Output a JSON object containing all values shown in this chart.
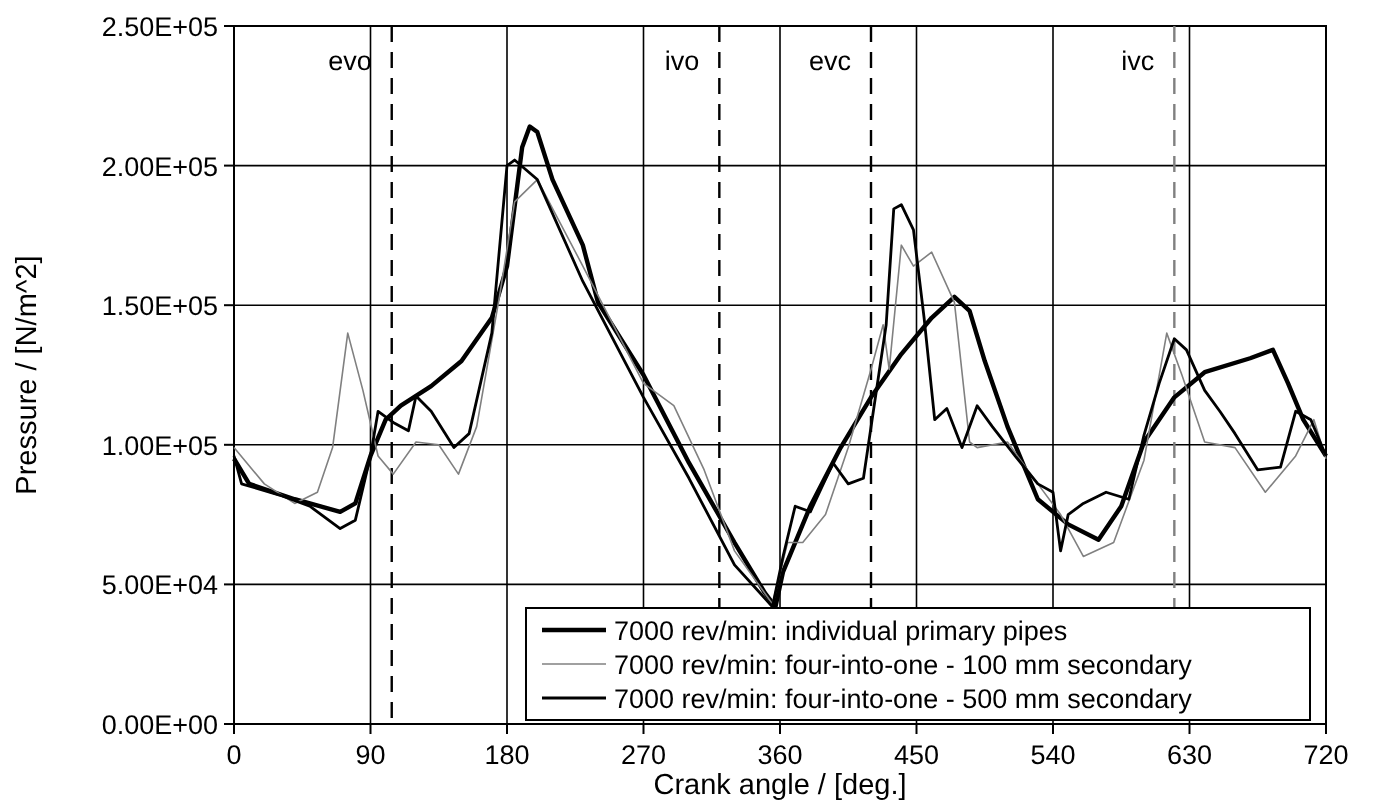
{
  "chart_data": {
    "type": "line",
    "xlabel": "Crank angle / [deg.]",
    "ylabel": "Pressure / [N/m^2]",
    "xlim": [
      0,
      720
    ],
    "xticks": [
      0,
      90,
      180,
      270,
      360,
      450,
      540,
      630,
      720
    ],
    "ylim": [
      0,
      250000
    ],
    "yticks": [
      {
        "value": 0,
        "label": "0.00E+00"
      },
      {
        "value": 50000,
        "label": "5.00E+04"
      },
      {
        "value": 100000,
        "label": "1.00E+05"
      },
      {
        "value": 150000,
        "label": "1.50E+05"
      },
      {
        "value": 200000,
        "label": "2.00E+05"
      },
      {
        "value": 250000,
        "label": "2.50E+05"
      }
    ],
    "grid": true,
    "legend": "bottom right",
    "marker": "none",
    "line_style": "solid",
    "ref_lines": [
      {
        "axis": "x",
        "value": 104,
        "label": "evo",
        "color": "#000000",
        "line_style": "dashed"
      },
      {
        "axis": "x",
        "value": 320,
        "label": "ivo",
        "color": "#000000",
        "line_style": "dashed"
      },
      {
        "axis": "x",
        "value": 420,
        "label": "evc",
        "color": "#000000",
        "line_style": "dashed"
      },
      {
        "axis": "x",
        "value": 620,
        "label": "ivc",
        "color": "#808080",
        "line_style": "dashed"
      }
    ],
    "series": [
      {
        "name": "7000 rev/min: individual primary pipes",
        "color": "#000000",
        "x": [
          0,
          10,
          40,
          70,
          80,
          90,
          100,
          110,
          130,
          150,
          170,
          180,
          190,
          195,
          200,
          210,
          230,
          240,
          270,
          300,
          330,
          350,
          357,
          362,
          380,
          400,
          420,
          440,
          460,
          475,
          485,
          495,
          510,
          530,
          550,
          570,
          585,
          600,
          620,
          640,
          670,
          685,
          695,
          705,
          720
        ],
        "values": [
          95000,
          86000,
          80500,
          76000,
          79000,
          96000,
          109000,
          114000,
          121000,
          130000,
          145500,
          164000,
          206600,
          214000,
          212000,
          195000,
          171500,
          151000,
          125000,
          93500,
          65000,
          47000,
          42000,
          54500,
          78000,
          99000,
          117000,
          132500,
          145500,
          153000,
          148000,
          130000,
          106500,
          80500,
          71500,
          66000,
          78000,
          101000,
          117000,
          126000,
          131000,
          134000,
          122000,
          109000,
          96000
        ]
      },
      {
        "name": "7000 rev/min: four-into-one - 100 mm secondary",
        "color": "#808080",
        "x": [
          0,
          20,
          40,
          55,
          65,
          75,
          85,
          95,
          105,
          120,
          135,
          148,
          160,
          175,
          185,
          200,
          230,
          270,
          290,
          310,
          330,
          355,
          365,
          375,
          390,
          405,
          420,
          428,
          432,
          440,
          448,
          460,
          475,
          485,
          490,
          510,
          530,
          545,
          560,
          580,
          600,
          615,
          625,
          640,
          660,
          680,
          700,
          712,
          720
        ],
        "values": [
          99000,
          86000,
          79000,
          83000,
          99000,
          140000,
          119500,
          96000,
          89500,
          101000,
          100000,
          89500,
          106500,
          153000,
          187000,
          195000,
          164000,
          122000,
          114000,
          91000,
          62000,
          43000,
          65000,
          65000,
          75000,
          99000,
          127000,
          143000,
          127000,
          171500,
          164000,
          169000,
          151000,
          101000,
          99000,
          101000,
          86000,
          75000,
          60000,
          65000,
          94500,
          140000,
          125000,
          101000,
          99000,
          83000,
          96000,
          109000,
          95000
        ]
      },
      {
        "name": "7000 rev/min: four-into-one - 500 mm secondary",
        "color": "#000000",
        "x": [
          0,
          5,
          30,
          50,
          70,
          80,
          90,
          95,
          105,
          115,
          120,
          130,
          145,
          155,
          170,
          180,
          185,
          200,
          230,
          270,
          300,
          330,
          355,
          362,
          370,
          380,
          395,
          405,
          415,
          430,
          435,
          440,
          448,
          455,
          462,
          470,
          480,
          490,
          500,
          515,
          530,
          540,
          545,
          550,
          560,
          575,
          590,
          600,
          610,
          620,
          628,
          640,
          650,
          660,
          675,
          690,
          700,
          710,
          720
        ],
        "values": [
          96000,
          86000,
          82000,
          78000,
          70000,
          73000,
          96000,
          112000,
          108000,
          105000,
          117500,
          112000,
          99000,
          104000,
          140000,
          200000,
          202000,
          195000,
          158500,
          117000,
          88000,
          57000,
          42000,
          60000,
          78000,
          76000,
          93500,
          86000,
          88000,
          143000,
          184500,
          186000,
          177000,
          145500,
          109000,
          113000,
          99000,
          114000,
          106500,
          96000,
          86000,
          83000,
          62000,
          75000,
          79000,
          83000,
          80500,
          103500,
          122000,
          138000,
          134000,
          119500,
          112000,
          104000,
          91000,
          92000,
          112000,
          109000,
          96000
        ]
      }
    ]
  }
}
